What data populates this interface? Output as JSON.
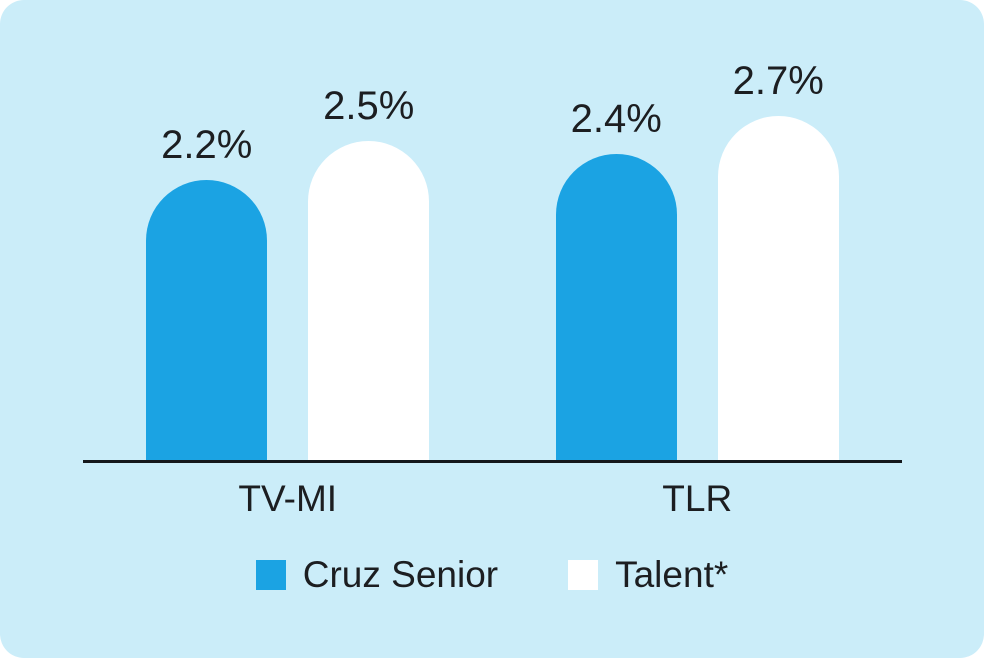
{
  "chart_data": {
    "type": "bar",
    "title": "",
    "categories": [
      "TV-MI",
      "TLR"
    ],
    "series": [
      {
        "name": "Cruz Senior",
        "color": "#1ba3e3",
        "values": [
          2.2,
          2.4
        ],
        "labels": [
          "2.2%",
          "2.4%"
        ]
      },
      {
        "name": "Talent*",
        "color": "#ffffff",
        "values": [
          2.5,
          2.7
        ],
        "labels": [
          "2.5%",
          "2.7%"
        ]
      }
    ],
    "value_suffix": "%",
    "ylim": [
      0,
      3
    ],
    "grid": false,
    "legend_position": "bottom",
    "background_color": "#cbedf9",
    "axis_line_color": "#14181c",
    "text_color": "#1c1e21"
  }
}
